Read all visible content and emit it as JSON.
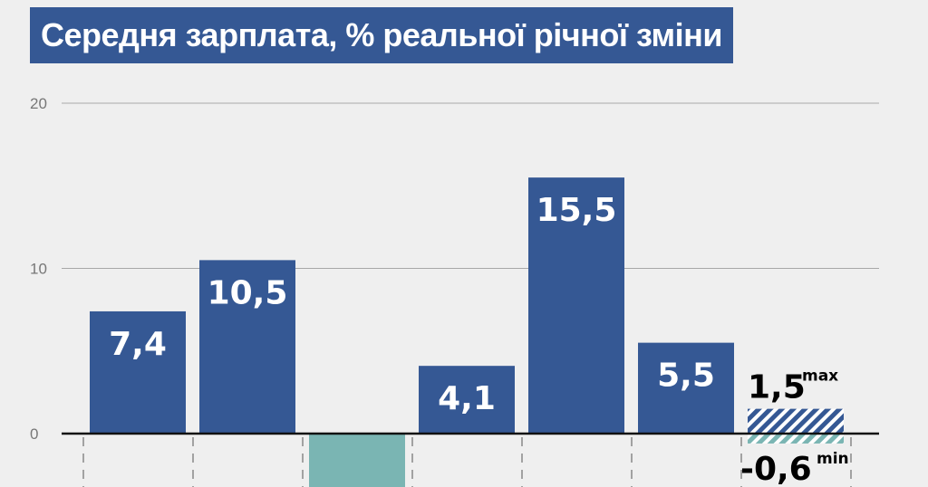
{
  "chart_data": {
    "type": "bar",
    "title": "Середня зарплата, % реальної річної зміни",
    "ylim": [
      -4,
      20
    ],
    "yticks": [
      "20",
      "10",
      "0"
    ],
    "ytick_values": [
      20,
      10,
      0
    ],
    "grid": true,
    "bars": [
      {
        "value": 7.4,
        "label": "7,4",
        "color": "#355894"
      },
      {
        "value": 10.5,
        "label": "10,5",
        "color": "#355894"
      },
      {
        "value": -4.0,
        "label": "",
        "color": "#7ab5b3"
      },
      {
        "value": 4.1,
        "label": "4,1",
        "color": "#355894"
      },
      {
        "value": 15.5,
        "label": "15,5",
        "color": "#355894"
      },
      {
        "value": 5.5,
        "label": "5,5",
        "color": "#355894"
      }
    ],
    "forecast_range": {
      "max": 1.5,
      "max_label": "1,5",
      "max_tag": "max",
      "min": -0.6,
      "min_label": "-0,6",
      "min_tag": "min",
      "max_color": "#355894",
      "min_color": "#7ab5b3"
    }
  }
}
